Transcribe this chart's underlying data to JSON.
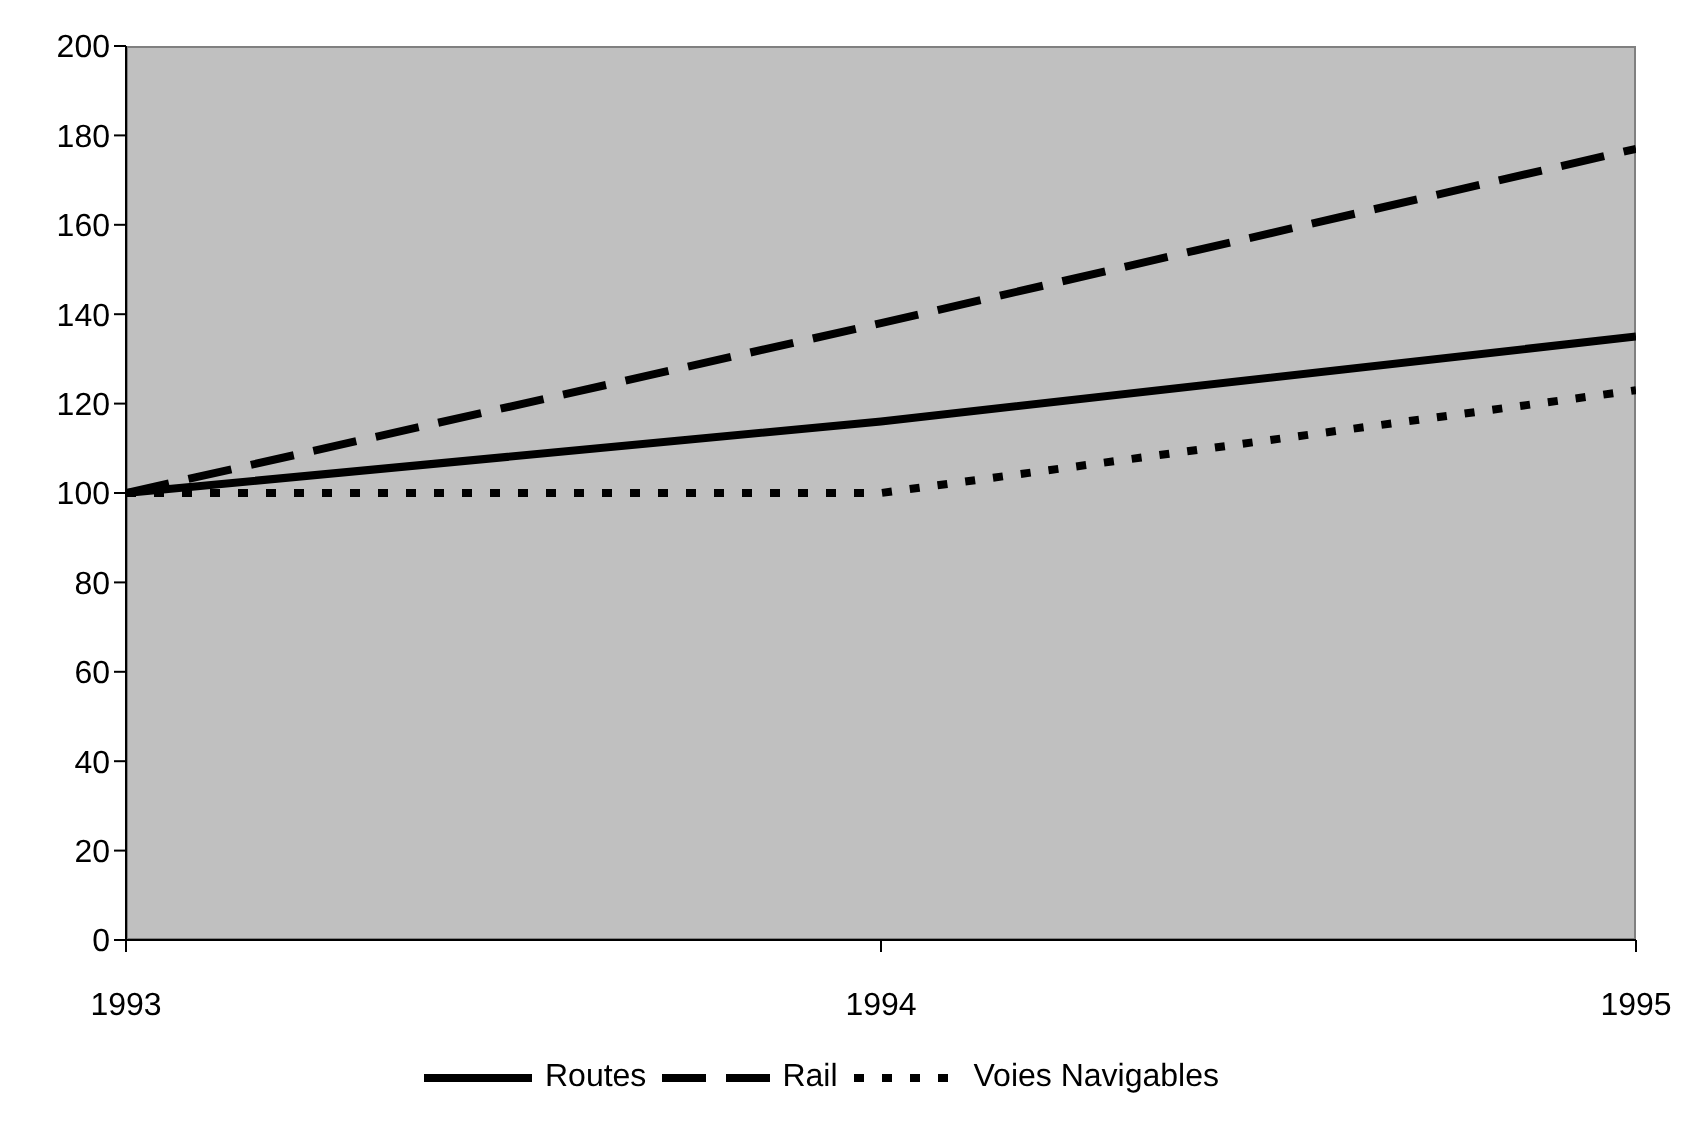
{
  "chart_data": {
    "type": "line",
    "x": [
      1993,
      1994,
      1995
    ],
    "series": [
      {
        "name": "Routes",
        "color": "#000000",
        "values": [
          100,
          116,
          135
        ],
        "line_style": "solid"
      },
      {
        "name": "Rail",
        "color": "#000000",
        "values": [
          100,
          138,
          177
        ],
        "line_style": "dashed"
      },
      {
        "name": "Voies Navigables",
        "color": "#000000",
        "values": [
          100,
          100,
          123
        ],
        "line_style": "dotted"
      }
    ],
    "xlim": [
      1993,
      1995
    ],
    "xticks": [
      1993,
      1994,
      1995
    ],
    "ylim": [
      0,
      200
    ],
    "yticks": [
      0,
      20,
      40,
      60,
      80,
      100,
      120,
      140,
      160,
      180,
      200
    ],
    "grid": false,
    "legend": "bottom",
    "marker": "none"
  }
}
